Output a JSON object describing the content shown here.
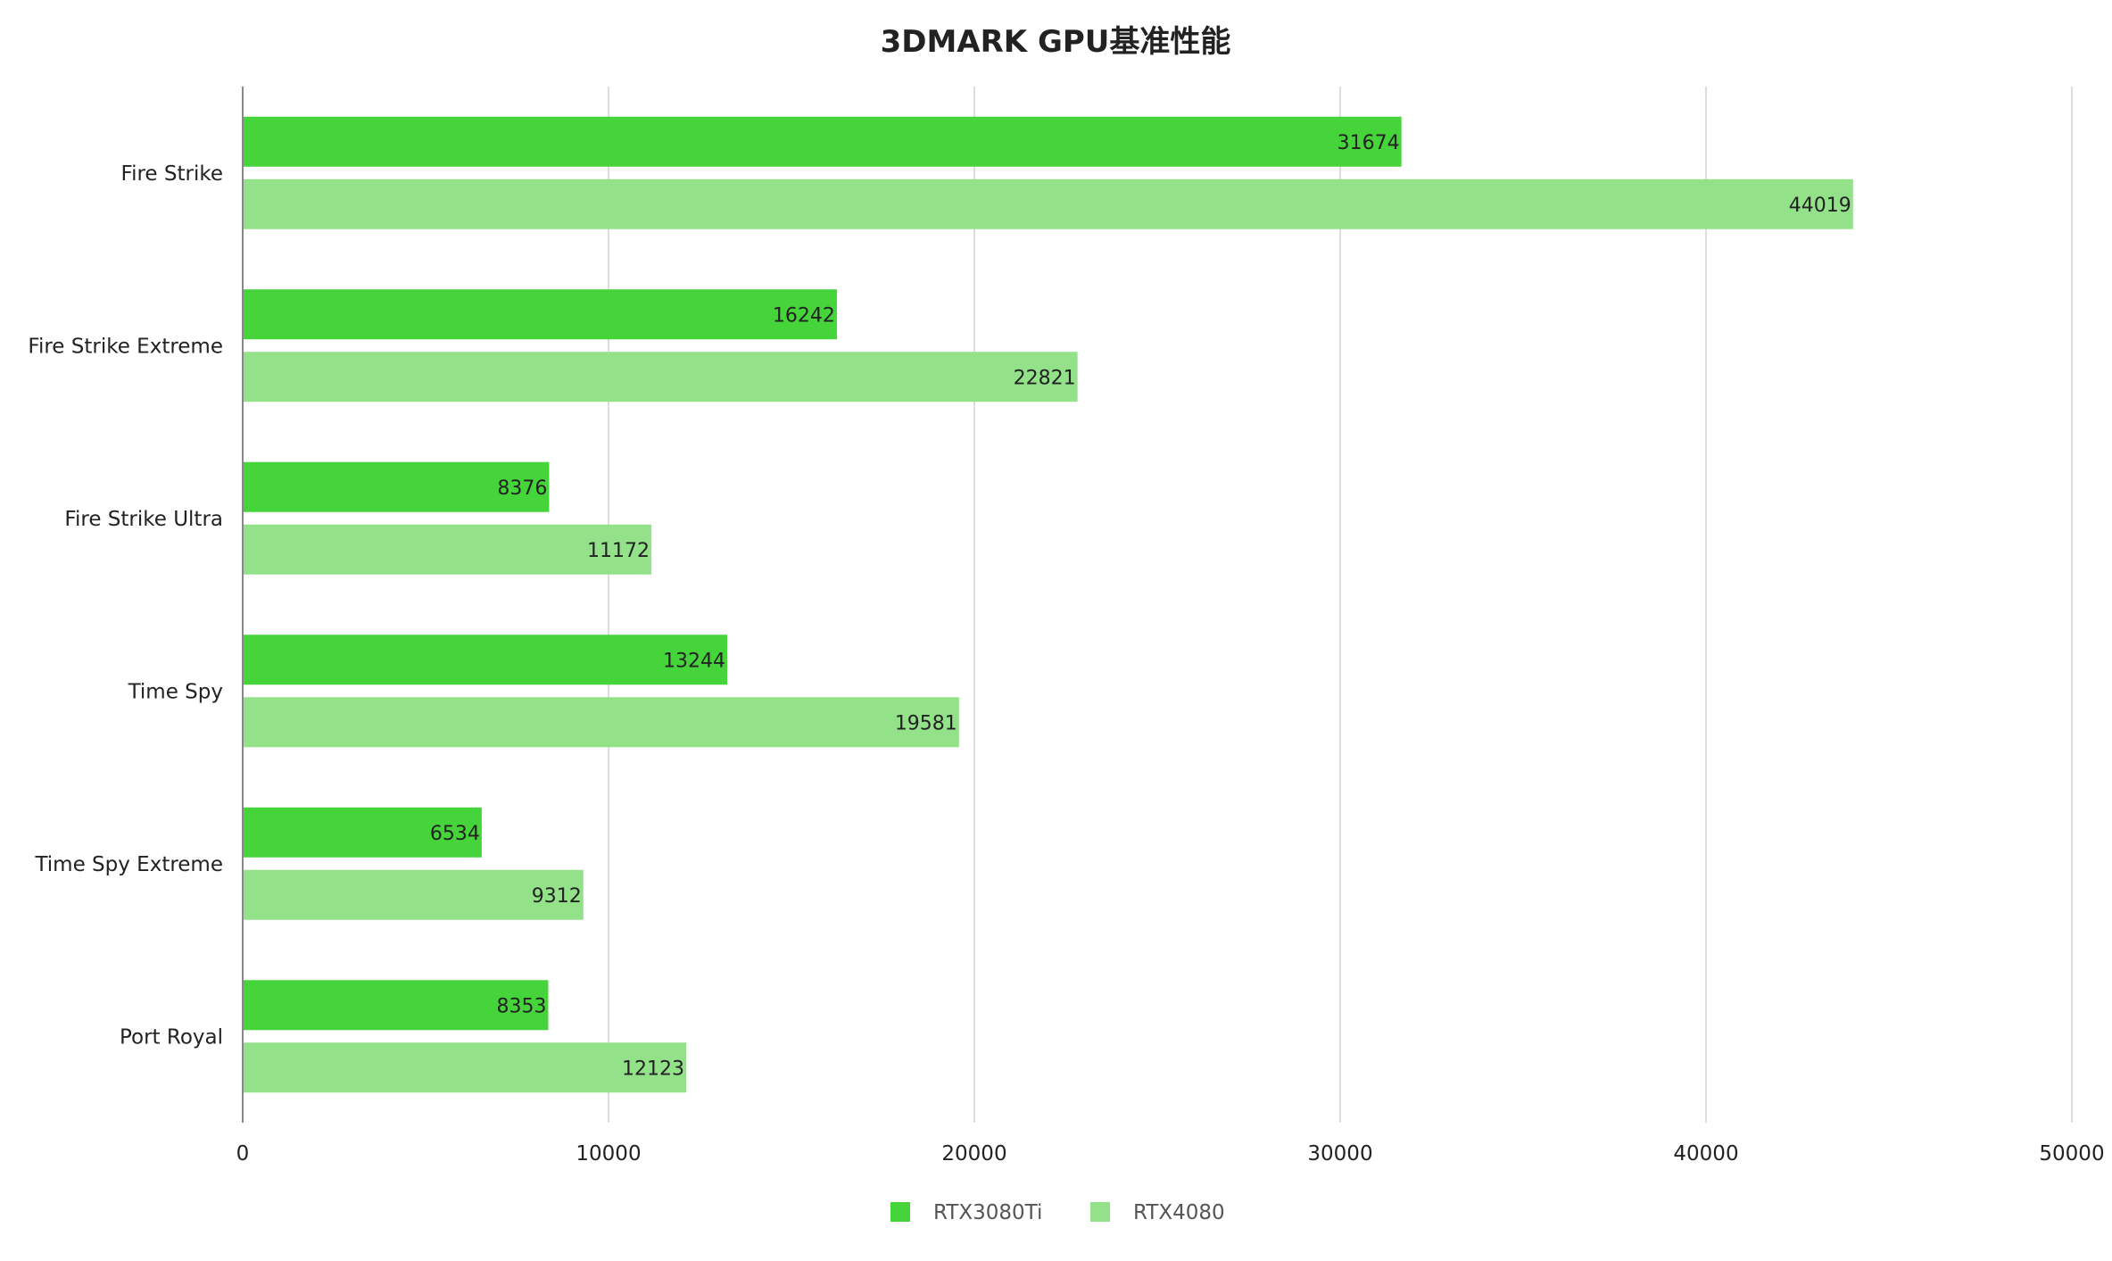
{
  "chart_data": {
    "type": "bar",
    "orientation": "horizontal",
    "title": "3DMARK GPU基准性能",
    "categories": [
      "Fire Strike",
      "Fire Strike Extreme",
      "Fire Strike Ultra",
      "Time Spy",
      "Time Spy Extreme",
      "Port Royal"
    ],
    "series": [
      {
        "name": "RTX3080Ti",
        "color": "#46d43b",
        "values": [
          31674,
          16242,
          8376,
          13244,
          6534,
          8353
        ]
      },
      {
        "name": "RTX4080",
        "color": "#93e28a",
        "values": [
          44019,
          22821,
          11172,
          19581,
          9312,
          12123
        ]
      }
    ],
    "xlim": [
      0,
      50000
    ],
    "xticks": [
      0,
      10000,
      20000,
      30000,
      40000,
      50000
    ],
    "xlabel": "",
    "ylabel": "",
    "grid": "vertical",
    "legend_position": "bottom-center",
    "data_labels": true
  }
}
